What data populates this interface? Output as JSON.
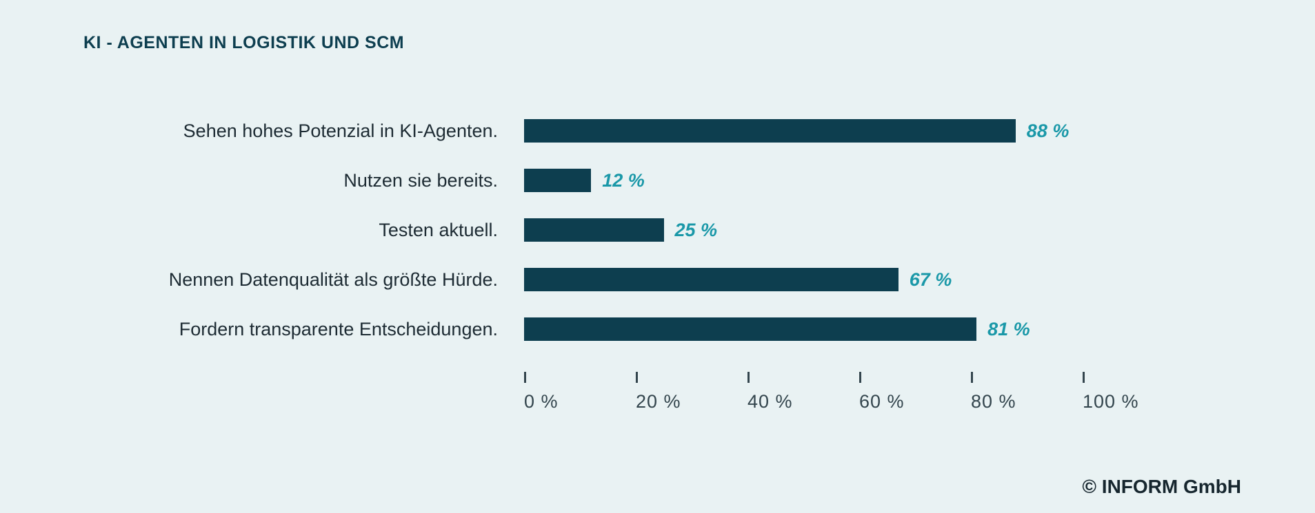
{
  "page": {
    "title": "KI - AGENTEN IN LOGISTIK UND SCM",
    "copyright": "© INFORM GmbH"
  },
  "colors": {
    "background": "#e9f2f3",
    "bar": "#0d3e4f",
    "accent": "#1a98a8",
    "title": "#0d3e4f",
    "category_label": "#1d2b33",
    "tick": "#33454d"
  },
  "chart_data": {
    "type": "bar",
    "orientation": "horizontal",
    "title": "KI - AGENTEN IN LOGISTIK UND SCM",
    "categories": [
      "Sehen hohes Potenzial in KI-Agenten.",
      "Nutzen sie bereits.",
      "Testen aktuell.",
      "Nennen Datenqualität als größte Hürde.",
      "Fordern transparente Entscheidungen."
    ],
    "values": [
      88,
      12,
      25,
      67,
      81
    ],
    "value_labels": [
      "88 %",
      "12 %",
      "25 %",
      "67 %",
      "81 %"
    ],
    "xlabel": "",
    "ylabel": "",
    "xlim": [
      0,
      100
    ],
    "x_ticks": [
      0,
      20,
      40,
      60,
      80,
      100
    ],
    "x_tick_labels": [
      "0 %",
      "20 %",
      "40 %",
      "60 %",
      "80 %",
      "100 %"
    ],
    "grid": false,
    "legend": false,
    "source": "© INFORM GmbH"
  }
}
